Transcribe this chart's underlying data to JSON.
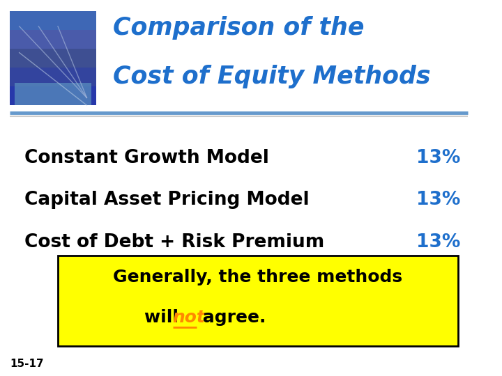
{
  "title_line1": "Comparison of the",
  "title_line2": "Cost of Equity Methods",
  "title_color": "#1e6fcc",
  "bg_color": "#ffffff",
  "line1_label": "Constant Growth Model",
  "line1_value": "13%",
  "line2_label": "Capital Asset Pricing Model",
  "line2_value": "13%",
  "line3_label": "Cost of Debt + Risk Premium",
  "line3_value": "13%",
  "box_text1": "Generally, the three methods",
  "box_text2_pre": "will ",
  "box_text2_mid": "not",
  "box_text2_post": " agree.",
  "box_bg": "#ffff00",
  "box_border": "#000000",
  "label_color": "#000000",
  "value_color": "#1e6fcc",
  "box_text_color": "#000000",
  "not_color": "#ff8800",
  "footer": "15-17",
  "footer_color": "#000000",
  "separator_color1": "#6699cc",
  "separator_color2": "#cccccc"
}
